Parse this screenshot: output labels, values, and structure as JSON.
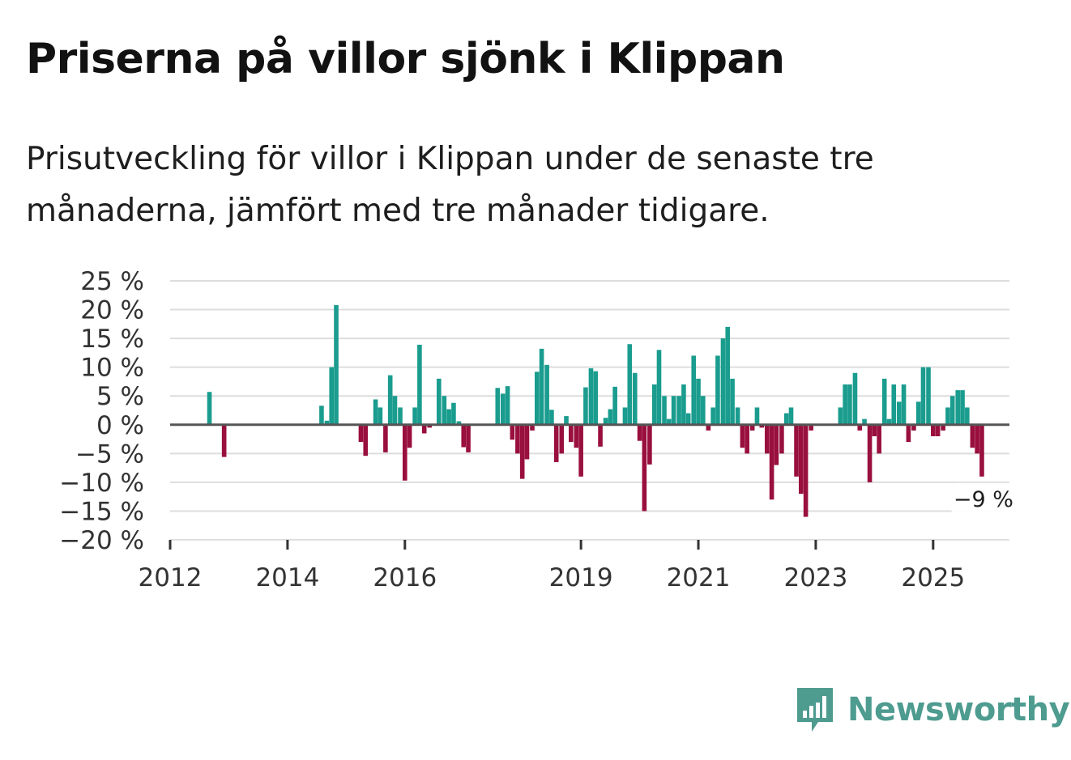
{
  "title": "Priserna på villor sjönk i Klippan",
  "subtitle": "Prisutveckling för villor i Klippan under de senaste tre månaderna, jämfört med tre månader tidigare.",
  "colors": {
    "positive": "#1a9c8e",
    "negative": "#990f3d",
    "zero_line": "#555555",
    "grid": "#dddddd",
    "brand": "#4e9b90"
  },
  "brand": {
    "name": "Newsworthy",
    "icon": "bar-chart-speech-bubble-icon"
  },
  "chart_data": {
    "type": "bar",
    "title": "Priserna på villor sjönk i Klippan",
    "xlabel": "",
    "ylabel": "",
    "ylim": [
      -20,
      25
    ],
    "xlim": [
      2012.0,
      2026.3
    ],
    "yticks": [
      25,
      20,
      15,
      10,
      5,
      0,
      -5,
      -10,
      -15,
      -20
    ],
    "ytick_labels": [
      "25 %",
      "20 %",
      "15 %",
      "10 %",
      "5 %",
      "0 %",
      "−5 %",
      "−10 %",
      "−15 %",
      "−20 %"
    ],
    "xticks": [
      2012,
      2014,
      2016,
      2019,
      2021,
      2023,
      2025
    ],
    "xtick_labels": [
      "2012",
      "2014",
      "2016",
      "2019",
      "2021",
      "2023",
      "2025"
    ],
    "grid": true,
    "annotation": {
      "label": "−9 %",
      "x": 2025.83,
      "value": -9
    },
    "series": [
      {
        "name": "Prisutveckling",
        "points": [
          {
            "x": 2012.67,
            "value": 5.7
          },
          {
            "x": 2012.92,
            "value": -5.6
          },
          {
            "x": 2014.58,
            "value": 3.3
          },
          {
            "x": 2014.67,
            "value": 0.7
          },
          {
            "x": 2014.75,
            "value": 10.0
          },
          {
            "x": 2014.83,
            "value": 20.8
          },
          {
            "x": 2015.25,
            "value": -3.0
          },
          {
            "x": 2015.33,
            "value": -5.4
          },
          {
            "x": 2015.5,
            "value": 4.4
          },
          {
            "x": 2015.58,
            "value": 3.0
          },
          {
            "x": 2015.67,
            "value": -4.8
          },
          {
            "x": 2015.75,
            "value": 8.6
          },
          {
            "x": 2015.83,
            "value": 5.0
          },
          {
            "x": 2015.92,
            "value": 3.0
          },
          {
            "x": 2016.0,
            "value": -9.7
          },
          {
            "x": 2016.08,
            "value": -4.0
          },
          {
            "x": 2016.17,
            "value": 3.0
          },
          {
            "x": 2016.25,
            "value": 13.9
          },
          {
            "x": 2016.33,
            "value": -1.5
          },
          {
            "x": 2016.42,
            "value": -0.5
          },
          {
            "x": 2016.58,
            "value": 8.0
          },
          {
            "x": 2016.67,
            "value": 5.0
          },
          {
            "x": 2016.75,
            "value": 2.7
          },
          {
            "x": 2016.83,
            "value": 3.8
          },
          {
            "x": 2016.92,
            "value": 0.6
          },
          {
            "x": 2017.0,
            "value": -3.9
          },
          {
            "x": 2017.08,
            "value": -4.8
          },
          {
            "x": 2017.58,
            "value": 6.4
          },
          {
            "x": 2017.67,
            "value": 5.4
          },
          {
            "x": 2017.75,
            "value": 6.7
          },
          {
            "x": 2017.83,
            "value": -2.6
          },
          {
            "x": 2017.92,
            "value": -5.0
          },
          {
            "x": 2018.0,
            "value": -9.4
          },
          {
            "x": 2018.08,
            "value": -6.0
          },
          {
            "x": 2018.17,
            "value": -1.0
          },
          {
            "x": 2018.25,
            "value": 9.2
          },
          {
            "x": 2018.33,
            "value": 13.2
          },
          {
            "x": 2018.42,
            "value": 10.4
          },
          {
            "x": 2018.5,
            "value": 2.6
          },
          {
            "x": 2018.58,
            "value": -6.5
          },
          {
            "x": 2018.67,
            "value": -5.0
          },
          {
            "x": 2018.75,
            "value": 1.5
          },
          {
            "x": 2018.83,
            "value": -3.0
          },
          {
            "x": 2018.92,
            "value": -4.0
          },
          {
            "x": 2019.0,
            "value": -9.0
          },
          {
            "x": 2019.08,
            "value": 6.5
          },
          {
            "x": 2019.17,
            "value": 9.8
          },
          {
            "x": 2019.25,
            "value": 9.3
          },
          {
            "x": 2019.33,
            "value": -3.8
          },
          {
            "x": 2019.42,
            "value": 1.2
          },
          {
            "x": 2019.5,
            "value": 2.7
          },
          {
            "x": 2019.58,
            "value": 6.6
          },
          {
            "x": 2019.75,
            "value": 3.0
          },
          {
            "x": 2019.83,
            "value": 14.0
          },
          {
            "x": 2019.92,
            "value": 9.0
          },
          {
            "x": 2020.0,
            "value": -2.8
          },
          {
            "x": 2020.08,
            "value": -15.0
          },
          {
            "x": 2020.17,
            "value": -6.9
          },
          {
            "x": 2020.25,
            "value": 7.0
          },
          {
            "x": 2020.33,
            "value": 13.0
          },
          {
            "x": 2020.42,
            "value": 5.0
          },
          {
            "x": 2020.5,
            "value": 1.0
          },
          {
            "x": 2020.58,
            "value": 5.0
          },
          {
            "x": 2020.67,
            "value": 5.0
          },
          {
            "x": 2020.75,
            "value": 7.0
          },
          {
            "x": 2020.83,
            "value": 2.0
          },
          {
            "x": 2020.92,
            "value": 12.0
          },
          {
            "x": 2021.0,
            "value": 8.0
          },
          {
            "x": 2021.08,
            "value": 5.0
          },
          {
            "x": 2021.17,
            "value": -1.0
          },
          {
            "x": 2021.25,
            "value": 3.0
          },
          {
            "x": 2021.33,
            "value": 12.0
          },
          {
            "x": 2021.42,
            "value": 15.0
          },
          {
            "x": 2021.5,
            "value": 17.0
          },
          {
            "x": 2021.58,
            "value": 8.0
          },
          {
            "x": 2021.67,
            "value": 3.0
          },
          {
            "x": 2021.75,
            "value": -4.0
          },
          {
            "x": 2021.83,
            "value": -5.0
          },
          {
            "x": 2021.92,
            "value": -1.0
          },
          {
            "x": 2022.0,
            "value": 3.0
          },
          {
            "x": 2022.08,
            "value": -0.5
          },
          {
            "x": 2022.17,
            "value": -5.0
          },
          {
            "x": 2022.25,
            "value": -13.0
          },
          {
            "x": 2022.33,
            "value": -7.0
          },
          {
            "x": 2022.42,
            "value": -5.0
          },
          {
            "x": 2022.5,
            "value": 2.0
          },
          {
            "x": 2022.58,
            "value": 3.0
          },
          {
            "x": 2022.67,
            "value": -9.0
          },
          {
            "x": 2022.75,
            "value": -12.0
          },
          {
            "x": 2022.83,
            "value": -16.0
          },
          {
            "x": 2022.92,
            "value": -1.0
          },
          {
            "x": 2023.42,
            "value": 3.0
          },
          {
            "x": 2023.5,
            "value": 7.0
          },
          {
            "x": 2023.58,
            "value": 7.0
          },
          {
            "x": 2023.67,
            "value": 9.0
          },
          {
            "x": 2023.75,
            "value": -1.0
          },
          {
            "x": 2023.83,
            "value": 1.0
          },
          {
            "x": 2023.92,
            "value": -10.0
          },
          {
            "x": 2024.0,
            "value": -2.0
          },
          {
            "x": 2024.08,
            "value": -5.0
          },
          {
            "x": 2024.17,
            "value": 8.0
          },
          {
            "x": 2024.25,
            "value": 1.0
          },
          {
            "x": 2024.33,
            "value": 7.0
          },
          {
            "x": 2024.42,
            "value": 4.0
          },
          {
            "x": 2024.5,
            "value": 7.0
          },
          {
            "x": 2024.58,
            "value": -3.0
          },
          {
            "x": 2024.67,
            "value": -1.0
          },
          {
            "x": 2024.75,
            "value": 4.0
          },
          {
            "x": 2024.83,
            "value": 10.0
          },
          {
            "x": 2024.92,
            "value": 10.0
          },
          {
            "x": 2025.0,
            "value": -2.0
          },
          {
            "x": 2025.08,
            "value": -2.0
          },
          {
            "x": 2025.17,
            "value": -1.0
          },
          {
            "x": 2025.25,
            "value": 3.0
          },
          {
            "x": 2025.33,
            "value": 5.0
          },
          {
            "x": 2025.42,
            "value": 6.0
          },
          {
            "x": 2025.5,
            "value": 6.0
          },
          {
            "x": 2025.58,
            "value": 3.0
          },
          {
            "x": 2025.67,
            "value": -4.0
          },
          {
            "x": 2025.75,
            "value": -5.0
          },
          {
            "x": 2025.83,
            "value": -9.0
          }
        ]
      }
    ]
  }
}
